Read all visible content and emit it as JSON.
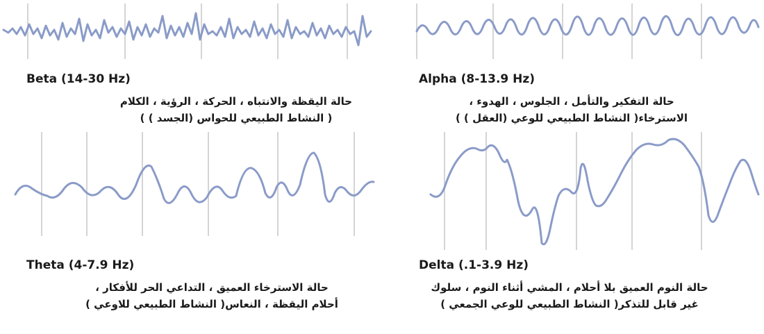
{
  "waves": [
    {
      "key": "beta",
      "label": "Beta (14-30 Hz)",
      "description_lines": [
        "حالة اليقظة والانتباه ، الحركة ، الرؤية ، الكلام",
        "( النشاط الطبيعي للحواس (الجسد ) )"
      ]
    },
    {
      "key": "alpha",
      "label": "Alpha (8-13.9 Hz)",
      "description_lines": [
        "حالة التفكير والتأمل ، الجلوس ، الهدوء ،",
        "الاسترخاء( النشاط الطبيعي للوعي (العقل ) )"
      ]
    },
    {
      "key": "theta",
      "label": "Theta (4-7.9 Hz)",
      "description_lines": [
        "حالة الاسترخاء العميق ، التداعي الحر للأفكار ،",
        "أحلام اليقظة ، النعاس( النشاط الطبيعي للاوعي )"
      ]
    },
    {
      "key": "delta",
      "label": "Delta (.1-3.9 Hz)",
      "description_lines": [
        "حالة النوم العميق بلا أحلام ، المشي أثناء النوم ، سلوك",
        "غير قابل للتذكر( النشاط الطبيعي للوعي الجمعي )"
      ]
    }
  ],
  "colors": {
    "trace": "#8a9bc8",
    "grid": "#d4d4d4",
    "text": "#1a1a1a"
  }
}
